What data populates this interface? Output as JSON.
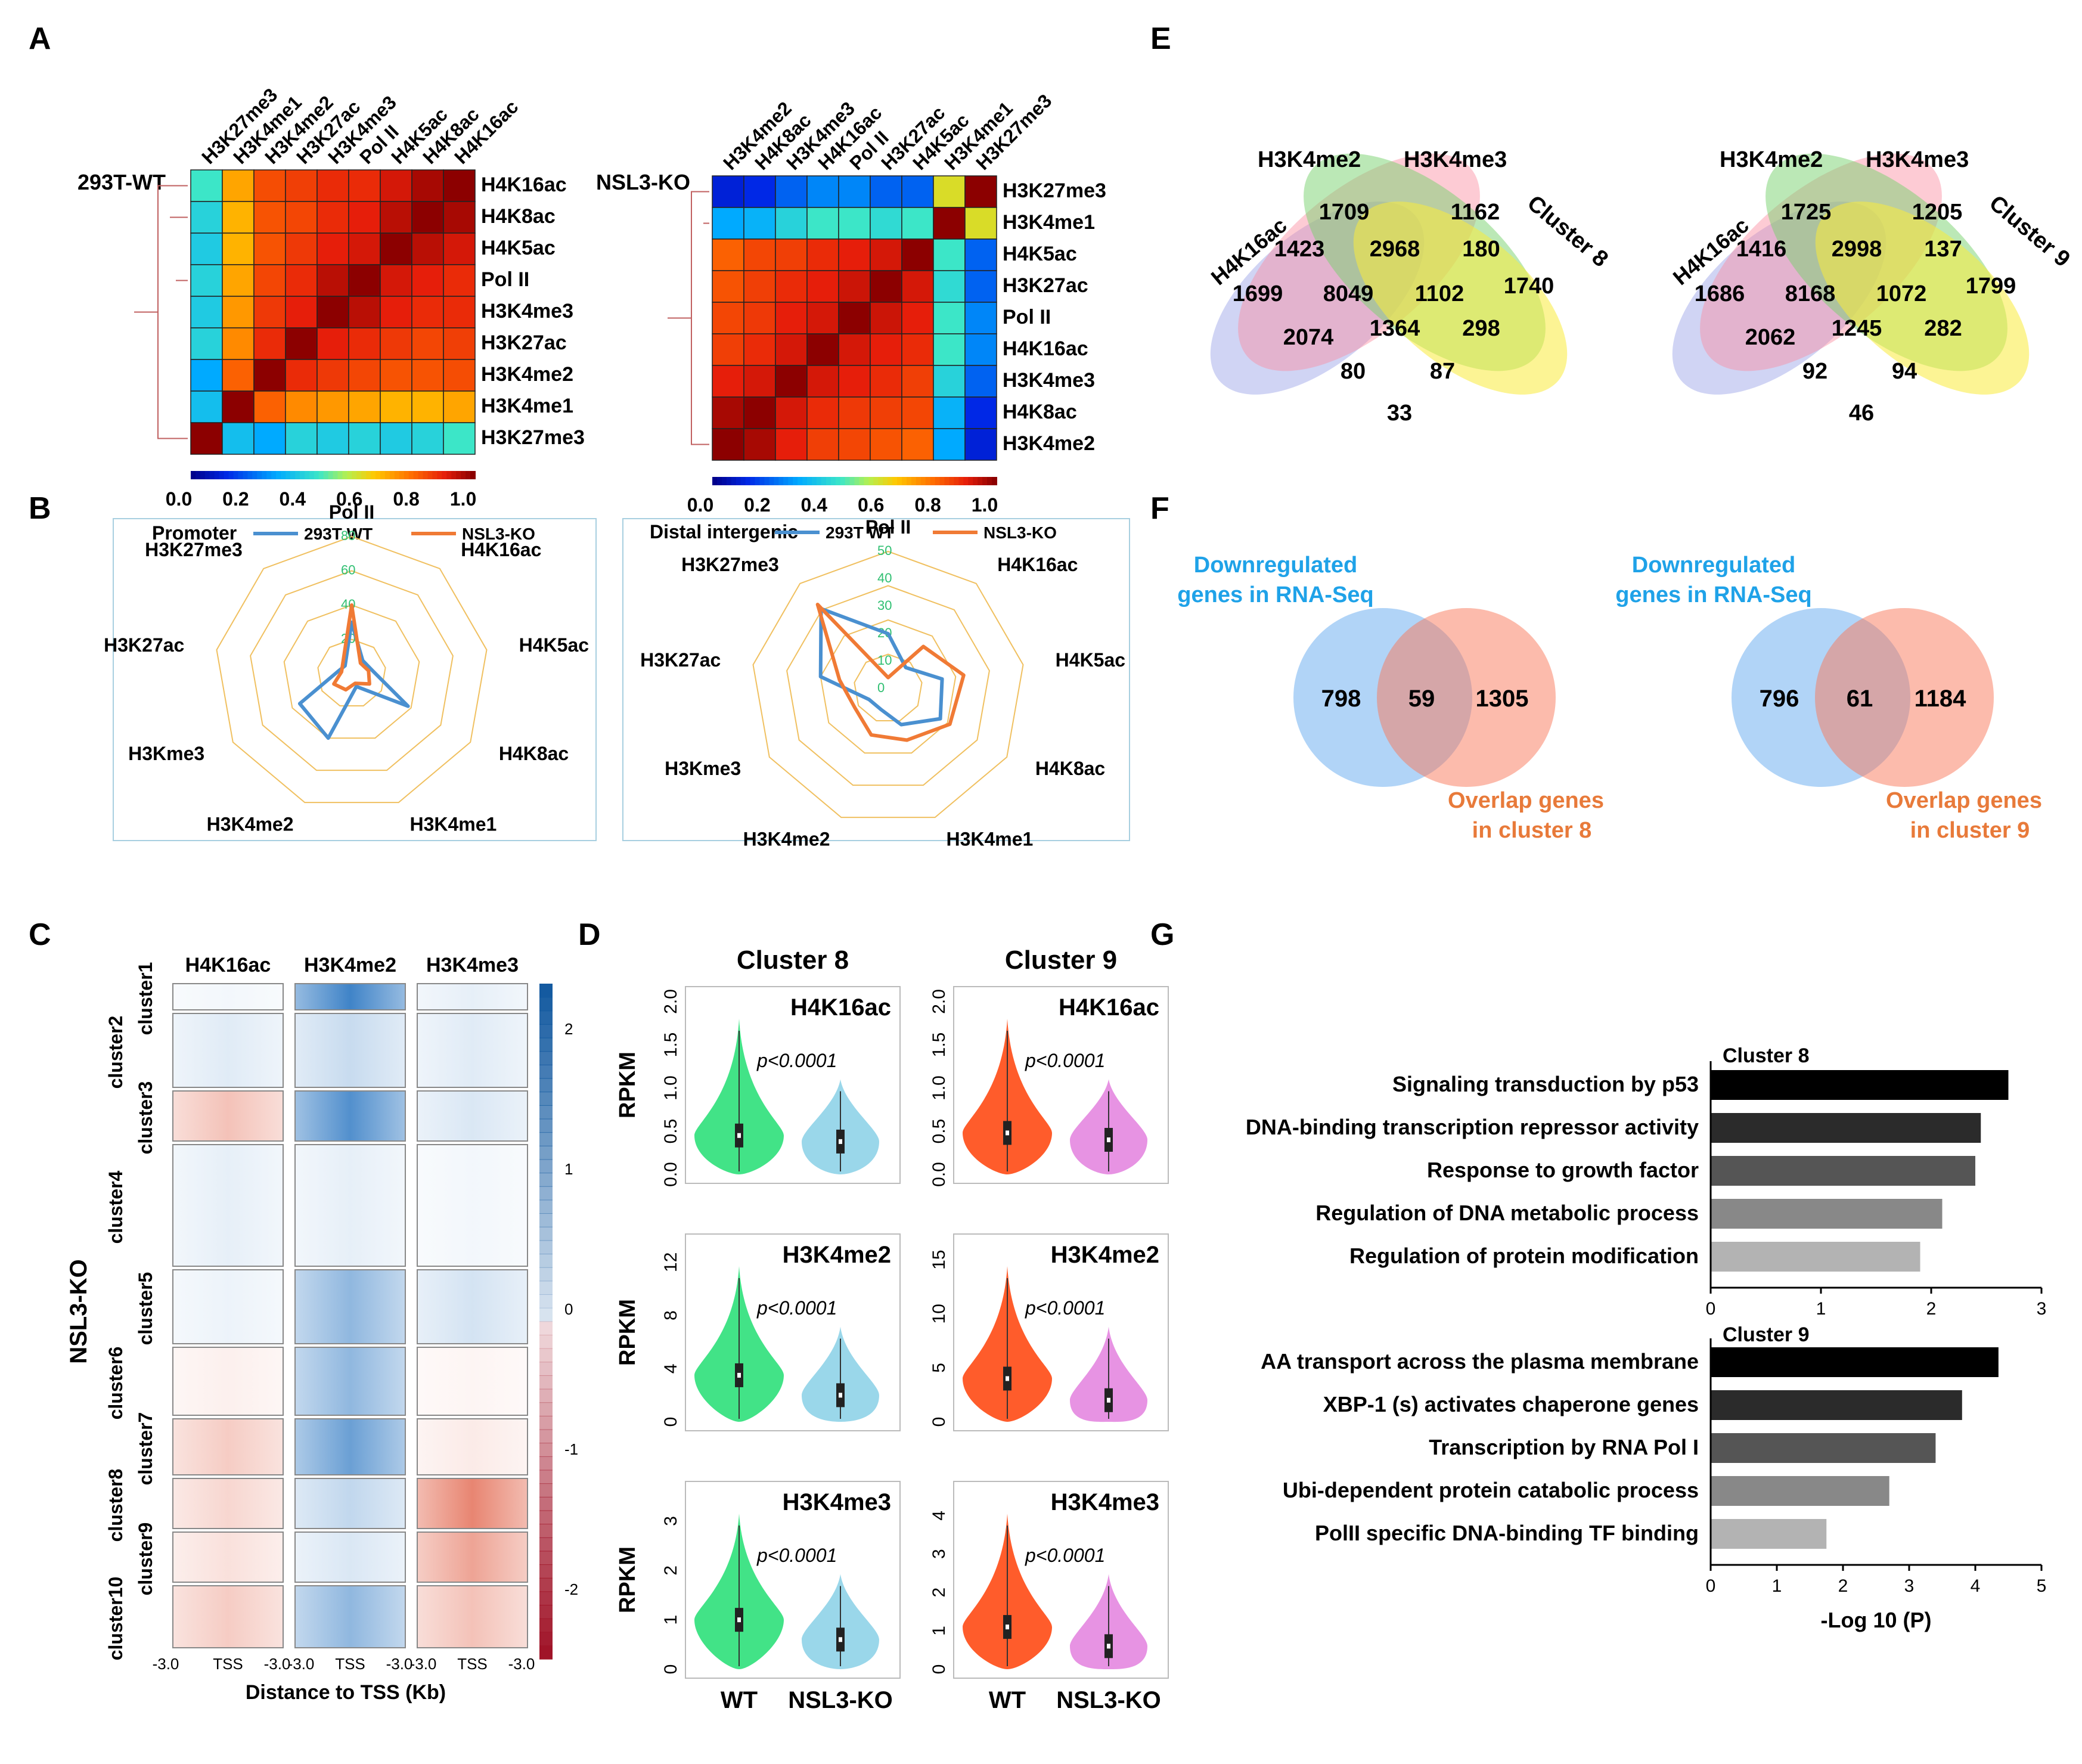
{
  "panels": {
    "A": "A",
    "B": "B",
    "C": "C",
    "D": "D",
    "E": "E",
    "F": "F",
    "G": "G"
  },
  "chart_data": [
    {
      "type": "heatmap",
      "panel": "A",
      "row_title": "293T-WT",
      "columns": [
        "H3K27me3",
        "H3K4me1",
        "H3K4me2",
        "H3K27ac",
        "H3K4me3",
        "Pol II",
        "H4K5ac",
        "H4K8ac",
        "H4K16ac"
      ],
      "rows": [
        "H4K16ac",
        "H4K8ac",
        "H4K5ac",
        "Pol II",
        "H3K4me3",
        "H3K27ac",
        "H3K4me2",
        "H3K4me1",
        "H3K27me3"
      ],
      "values": [
        [
          0.45,
          0.7,
          0.83,
          0.85,
          0.88,
          0.88,
          0.92,
          0.97,
          1.0
        ],
        [
          0.4,
          0.68,
          0.82,
          0.84,
          0.88,
          0.9,
          0.95,
          1.0,
          0.97
        ],
        [
          0.38,
          0.68,
          0.82,
          0.86,
          0.9,
          0.92,
          1.0,
          0.95,
          0.92
        ],
        [
          0.4,
          0.7,
          0.84,
          0.88,
          0.95,
          1.0,
          0.92,
          0.9,
          0.88
        ],
        [
          0.38,
          0.72,
          0.86,
          0.9,
          1.0,
          0.95,
          0.9,
          0.88,
          0.88
        ],
        [
          0.4,
          0.74,
          0.88,
          1.0,
          0.9,
          0.88,
          0.86,
          0.84,
          0.85
        ],
        [
          0.3,
          0.8,
          1.0,
          0.88,
          0.86,
          0.84,
          0.82,
          0.82,
          0.83
        ],
        [
          0.35,
          1.0,
          0.8,
          0.74,
          0.72,
          0.7,
          0.68,
          0.68,
          0.7
        ],
        [
          1.0,
          0.35,
          0.3,
          0.4,
          0.38,
          0.4,
          0.38,
          0.4,
          0.45
        ]
      ],
      "colorbar_ticks": [
        "0.0",
        "0.2",
        "0.4",
        "0.6",
        "0.8",
        "1.0"
      ],
      "range": [
        0,
        1
      ]
    },
    {
      "type": "heatmap",
      "panel": "A",
      "row_title": "NSL3-KO",
      "columns": [
        "H3K4me2",
        "H4K8ac",
        "H3K4me3",
        "H4K16ac",
        "Pol II",
        "H3K27ac",
        "H4K5ac",
        "H3K4me1",
        "H3K27me3"
      ],
      "rows": [
        "H3K27me3",
        "H3K4me1",
        "H4K5ac",
        "H3K27ac",
        "Pol II",
        "H4K16ac",
        "H3K4me3",
        "H4K8ac",
        "H3K4me2"
      ],
      "values": [
        [
          0.1,
          0.12,
          0.2,
          0.25,
          0.25,
          0.2,
          0.2,
          0.6,
          1.0
        ],
        [
          0.3,
          0.32,
          0.4,
          0.45,
          0.45,
          0.42,
          0.45,
          1.0,
          0.6
        ],
        [
          0.8,
          0.84,
          0.85,
          0.88,
          0.9,
          0.92,
          1.0,
          0.45,
          0.2
        ],
        [
          0.82,
          0.85,
          0.88,
          0.9,
          0.93,
          1.0,
          0.92,
          0.42,
          0.2
        ],
        [
          0.84,
          0.86,
          0.9,
          0.92,
          1.0,
          0.93,
          0.9,
          0.45,
          0.25
        ],
        [
          0.85,
          0.88,
          0.92,
          1.0,
          0.92,
          0.9,
          0.88,
          0.45,
          0.25
        ],
        [
          0.9,
          0.92,
          1.0,
          0.92,
          0.9,
          0.88,
          0.85,
          0.4,
          0.2
        ],
        [
          0.97,
          1.0,
          0.92,
          0.88,
          0.86,
          0.85,
          0.84,
          0.32,
          0.12
        ],
        [
          1.0,
          0.97,
          0.9,
          0.85,
          0.84,
          0.82,
          0.8,
          0.3,
          0.1
        ]
      ],
      "colorbar_ticks": [
        "0.0",
        "0.2",
        "0.4",
        "0.6",
        "0.8",
        "1.0"
      ],
      "range": [
        0,
        1
      ]
    },
    {
      "type": "radar",
      "panel": "B",
      "title": "Promoter",
      "axes": [
        "Pol II",
        "H4K16ac",
        "H4K5ac",
        "H4K8ac",
        "H3K4me1",
        "H3K4me2",
        "H3Kme3",
        "H3K27ac",
        "H3K27me3"
      ],
      "rmax": 80,
      "ticks": [
        "20",
        "40",
        "60",
        "80"
      ],
      "tick_values": [
        20,
        40,
        60,
        80
      ],
      "series": [
        {
          "name": "293T WT",
          "color": "#4a90d0",
          "values": [
            30,
            10,
            12,
            38,
            8,
            40,
            35,
            8,
            6
          ]
        },
        {
          "name": "NSL3-KO",
          "color": "#f07a35",
          "values": [
            40,
            8,
            10,
            12,
            6,
            10,
            12,
            6,
            8
          ]
        }
      ]
    },
    {
      "type": "radar",
      "panel": "B",
      "title": "Distal intergenic",
      "axes": [
        "Pol II",
        "H4K16ac",
        "H4K5ac",
        "H4K8ac",
        "H3K4me1",
        "H3K4me2",
        "H3Kme3",
        "H3K27ac",
        "H3K27me3"
      ],
      "rmax": 50,
      "ticks": [
        "0",
        "10",
        "20",
        "30",
        "40",
        "50"
      ],
      "tick_values": [
        0,
        10,
        20,
        30,
        40,
        50
      ],
      "series": [
        {
          "name": "293T WT",
          "color": "#4a90d0",
          "values": [
            20,
            10,
            20,
            22,
            14,
            8,
            8,
            25,
            38
          ]
        },
        {
          "name": "NSL3-KO",
          "color": "#f07a35",
          "values": [
            4,
            20,
            28,
            26,
            20,
            18,
            14,
            18,
            40
          ]
        }
      ]
    },
    {
      "type": "heatmap-profile",
      "panel": "C",
      "ylabel": "NSL3-KO",
      "marks": [
        "H4K16ac",
        "H3K4me2",
        "H3K4me3"
      ],
      "clusters": [
        "cluster1",
        "cluster2",
        "cluster3",
        "cluster4",
        "cluster5",
        "cluster6",
        "cluster7",
        "cluster8",
        "cluster9",
        "cluster10"
      ],
      "xticks": [
        "-3.0",
        "TSS",
        "-3.0"
      ],
      "xlabel": "Distance to TSS (Kb)",
      "colorbar_ticks": [
        "2",
        "1",
        "0",
        "-1",
        "-2"
      ]
    },
    {
      "type": "violin",
      "panel": "D",
      "clusters": [
        "Cluster 8",
        "Cluster 9"
      ],
      "groups": [
        "WT",
        "NSL3-KO"
      ],
      "ylabel": "RPKM",
      "pvalue": "p<0.0001",
      "rows": [
        {
          "mark": "H4K16ac",
          "ticks": {
            "Cluster 8": [
              "0.0",
              "0.5",
              "1.0",
              "1.5",
              "2.0"
            ],
            "Cluster 9": [
              "0.0",
              "0.5",
              "1.0",
              "1.5",
              "2.0"
            ]
          },
          "ymax": {
            "Cluster 8": 2.0,
            "Cluster 9": 2.0
          },
          "medians": {
            "Cluster 8": [
              0.45,
              0.38
            ],
            "Cluster 9": [
              0.48,
              0.4
            ]
          }
        },
        {
          "mark": "H3K4me2",
          "ticks": {
            "Cluster 8": [
              "0",
              "4",
              "8",
              "12"
            ],
            "Cluster 9": [
              "0",
              "5",
              "10",
              "15"
            ]
          },
          "ymax": {
            "Cluster 8": 13,
            "Cluster 9": 16
          },
          "medians": {
            "Cluster 8": [
              3.5,
              2.0
            ],
            "Cluster 9": [
              4.0,
              2.0
            ]
          }
        },
        {
          "mark": "H3K4me3",
          "ticks": {
            "Cluster 8": [
              "0",
              "1",
              "2",
              "3"
            ],
            "Cluster 9": [
              "0",
              "1",
              "2",
              "3",
              "4"
            ]
          },
          "ymax": {
            "Cluster 8": 3.5,
            "Cluster 9": 4.5
          },
          "medians": {
            "Cluster 8": [
              1.0,
              0.6
            ],
            "Cluster 9": [
              1.1,
              0.6
            ]
          }
        }
      ]
    },
    {
      "type": "venn4",
      "panel": "E",
      "sets": [
        "H4K16ac",
        "H3K4me2",
        "H3K4me3",
        "Cluster 8"
      ],
      "regions": {
        "only_me2": "1709",
        "only_me3": "1162",
        "ac_me2": "1423",
        "me2_me3": "2968",
        "me3_cl": "180",
        "only_ac": "1699",
        "ac_me2_me3": "8049",
        "me2_me3_cl": "1102",
        "only_cl": "1740",
        "ac_me3": "2074",
        "all4": "1364",
        "me2_cl": "298",
        "ac_me3_cl": "80",
        "ac_me2_cl": "87",
        "ac_cl": "33"
      }
    },
    {
      "type": "venn4",
      "panel": "E",
      "sets": [
        "H4K16ac",
        "H3K4me2",
        "H3K4me3",
        "Cluster 9"
      ],
      "regions": {
        "only_me2": "1725",
        "only_me3": "1205",
        "ac_me2": "1416",
        "me2_me3": "2998",
        "me3_cl": "137",
        "only_ac": "1686",
        "ac_me2_me3": "8168",
        "me2_me3_cl": "1072",
        "only_cl": "1799",
        "ac_me3": "2062",
        "all4": "1245",
        "me2_cl": "282",
        "ac_me3_cl": "92",
        "ac_me2_cl": "94",
        "ac_cl": "46"
      }
    },
    {
      "type": "venn2",
      "panel": "F",
      "left_label": "Downregulated genes in RNA-Seq",
      "right_label": "Overlap genes in cluster 8",
      "values": [
        "798",
        "59",
        "1305"
      ]
    },
    {
      "type": "venn2",
      "panel": "F",
      "left_label": "Downregulated genes in RNA-Seq",
      "right_label": "Overlap genes in cluster 9",
      "values": [
        "796",
        "61",
        "1184"
      ]
    },
    {
      "type": "bar",
      "panel": "G",
      "title": "Cluster 8",
      "categories": [
        "Signaling transduction by p53",
        "DNA-binding transcription repressor activity",
        "Response to growth factor",
        "Regulation of DNA metabolic process",
        "Regulation of protein modification"
      ],
      "values": [
        2.7,
        2.45,
        2.4,
        2.1,
        1.9
      ],
      "xlim": [
        0,
        3
      ],
      "xticks": [
        "0",
        "1",
        "2",
        "3"
      ],
      "colors": [
        "#000000",
        "#2b2b2b",
        "#555555",
        "#888888",
        "#b3b3b3"
      ]
    },
    {
      "type": "bar",
      "panel": "G",
      "title": "Cluster 9",
      "categories": [
        "AA transport across the plasma membrane",
        "XBP-1 (s) activates chaperone genes",
        "Transcription by RNA Pol I",
        "Ubi-dependent protein catabolic process",
        "PolII specific DNA-binding TF binding"
      ],
      "values": [
        4.35,
        3.8,
        3.4,
        2.7,
        1.75
      ],
      "xlim": [
        0,
        5
      ],
      "xticks": [
        "0",
        "1",
        "2",
        "3",
        "4",
        "5"
      ],
      "xlabel": "-Log 10 (P)",
      "colors": [
        "#000000",
        "#2b2b2b",
        "#555555",
        "#888888",
        "#b3b3b3"
      ]
    }
  ]
}
